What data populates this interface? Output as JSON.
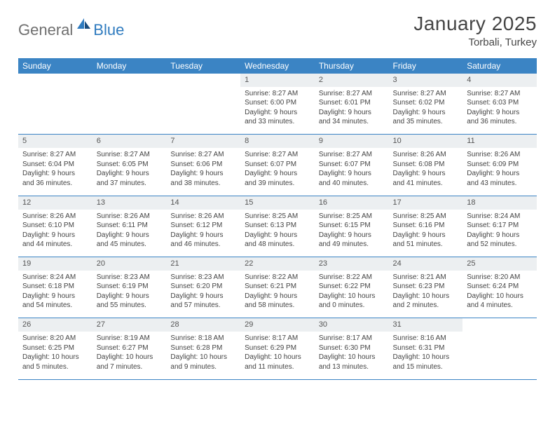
{
  "logo": {
    "word1": "General",
    "word2": "Blue"
  },
  "title": "January 2025",
  "location": "Torbali, Turkey",
  "colors": {
    "header_bg": "#3b84c4",
    "header_text": "#ffffff",
    "daynum_bg": "#eceff1",
    "border": "#3b84c4",
    "text": "#444444",
    "logo_gray": "#6f6f6f",
    "logo_blue": "#2f7bbf"
  },
  "typography": {
    "title_fontsize": 28,
    "location_fontsize": 15,
    "weekday_fontsize": 12,
    "daynum_fontsize": 11,
    "cell_fontsize": 10
  },
  "weekdays": [
    "Sunday",
    "Monday",
    "Tuesday",
    "Wednesday",
    "Thursday",
    "Friday",
    "Saturday"
  ],
  "weeks": [
    [
      null,
      null,
      null,
      {
        "n": "1",
        "sunrise": "Sunrise: 8:27 AM",
        "sunset": "Sunset: 6:00 PM",
        "daylight": "Daylight: 9 hours and 33 minutes."
      },
      {
        "n": "2",
        "sunrise": "Sunrise: 8:27 AM",
        "sunset": "Sunset: 6:01 PM",
        "daylight": "Daylight: 9 hours and 34 minutes."
      },
      {
        "n": "3",
        "sunrise": "Sunrise: 8:27 AM",
        "sunset": "Sunset: 6:02 PM",
        "daylight": "Daylight: 9 hours and 35 minutes."
      },
      {
        "n": "4",
        "sunrise": "Sunrise: 8:27 AM",
        "sunset": "Sunset: 6:03 PM",
        "daylight": "Daylight: 9 hours and 36 minutes."
      }
    ],
    [
      {
        "n": "5",
        "sunrise": "Sunrise: 8:27 AM",
        "sunset": "Sunset: 6:04 PM",
        "daylight": "Daylight: 9 hours and 36 minutes."
      },
      {
        "n": "6",
        "sunrise": "Sunrise: 8:27 AM",
        "sunset": "Sunset: 6:05 PM",
        "daylight": "Daylight: 9 hours and 37 minutes."
      },
      {
        "n": "7",
        "sunrise": "Sunrise: 8:27 AM",
        "sunset": "Sunset: 6:06 PM",
        "daylight": "Daylight: 9 hours and 38 minutes."
      },
      {
        "n": "8",
        "sunrise": "Sunrise: 8:27 AM",
        "sunset": "Sunset: 6:07 PM",
        "daylight": "Daylight: 9 hours and 39 minutes."
      },
      {
        "n": "9",
        "sunrise": "Sunrise: 8:27 AM",
        "sunset": "Sunset: 6:07 PM",
        "daylight": "Daylight: 9 hours and 40 minutes."
      },
      {
        "n": "10",
        "sunrise": "Sunrise: 8:26 AM",
        "sunset": "Sunset: 6:08 PM",
        "daylight": "Daylight: 9 hours and 41 minutes."
      },
      {
        "n": "11",
        "sunrise": "Sunrise: 8:26 AM",
        "sunset": "Sunset: 6:09 PM",
        "daylight": "Daylight: 9 hours and 43 minutes."
      }
    ],
    [
      {
        "n": "12",
        "sunrise": "Sunrise: 8:26 AM",
        "sunset": "Sunset: 6:10 PM",
        "daylight": "Daylight: 9 hours and 44 minutes."
      },
      {
        "n": "13",
        "sunrise": "Sunrise: 8:26 AM",
        "sunset": "Sunset: 6:11 PM",
        "daylight": "Daylight: 9 hours and 45 minutes."
      },
      {
        "n": "14",
        "sunrise": "Sunrise: 8:26 AM",
        "sunset": "Sunset: 6:12 PM",
        "daylight": "Daylight: 9 hours and 46 minutes."
      },
      {
        "n": "15",
        "sunrise": "Sunrise: 8:25 AM",
        "sunset": "Sunset: 6:13 PM",
        "daylight": "Daylight: 9 hours and 48 minutes."
      },
      {
        "n": "16",
        "sunrise": "Sunrise: 8:25 AM",
        "sunset": "Sunset: 6:15 PM",
        "daylight": "Daylight: 9 hours and 49 minutes."
      },
      {
        "n": "17",
        "sunrise": "Sunrise: 8:25 AM",
        "sunset": "Sunset: 6:16 PM",
        "daylight": "Daylight: 9 hours and 51 minutes."
      },
      {
        "n": "18",
        "sunrise": "Sunrise: 8:24 AM",
        "sunset": "Sunset: 6:17 PM",
        "daylight": "Daylight: 9 hours and 52 minutes."
      }
    ],
    [
      {
        "n": "19",
        "sunrise": "Sunrise: 8:24 AM",
        "sunset": "Sunset: 6:18 PM",
        "daylight": "Daylight: 9 hours and 54 minutes."
      },
      {
        "n": "20",
        "sunrise": "Sunrise: 8:23 AM",
        "sunset": "Sunset: 6:19 PM",
        "daylight": "Daylight: 9 hours and 55 minutes."
      },
      {
        "n": "21",
        "sunrise": "Sunrise: 8:23 AM",
        "sunset": "Sunset: 6:20 PM",
        "daylight": "Daylight: 9 hours and 57 minutes."
      },
      {
        "n": "22",
        "sunrise": "Sunrise: 8:22 AM",
        "sunset": "Sunset: 6:21 PM",
        "daylight": "Daylight: 9 hours and 58 minutes."
      },
      {
        "n": "23",
        "sunrise": "Sunrise: 8:22 AM",
        "sunset": "Sunset: 6:22 PM",
        "daylight": "Daylight: 10 hours and 0 minutes."
      },
      {
        "n": "24",
        "sunrise": "Sunrise: 8:21 AM",
        "sunset": "Sunset: 6:23 PM",
        "daylight": "Daylight: 10 hours and 2 minutes."
      },
      {
        "n": "25",
        "sunrise": "Sunrise: 8:20 AM",
        "sunset": "Sunset: 6:24 PM",
        "daylight": "Daylight: 10 hours and 4 minutes."
      }
    ],
    [
      {
        "n": "26",
        "sunrise": "Sunrise: 8:20 AM",
        "sunset": "Sunset: 6:25 PM",
        "daylight": "Daylight: 10 hours and 5 minutes."
      },
      {
        "n": "27",
        "sunrise": "Sunrise: 8:19 AM",
        "sunset": "Sunset: 6:27 PM",
        "daylight": "Daylight: 10 hours and 7 minutes."
      },
      {
        "n": "28",
        "sunrise": "Sunrise: 8:18 AM",
        "sunset": "Sunset: 6:28 PM",
        "daylight": "Daylight: 10 hours and 9 minutes."
      },
      {
        "n": "29",
        "sunrise": "Sunrise: 8:17 AM",
        "sunset": "Sunset: 6:29 PM",
        "daylight": "Daylight: 10 hours and 11 minutes."
      },
      {
        "n": "30",
        "sunrise": "Sunrise: 8:17 AM",
        "sunset": "Sunset: 6:30 PM",
        "daylight": "Daylight: 10 hours and 13 minutes."
      },
      {
        "n": "31",
        "sunrise": "Sunrise: 8:16 AM",
        "sunset": "Sunset: 6:31 PM",
        "daylight": "Daylight: 10 hours and 15 minutes."
      },
      null
    ]
  ]
}
